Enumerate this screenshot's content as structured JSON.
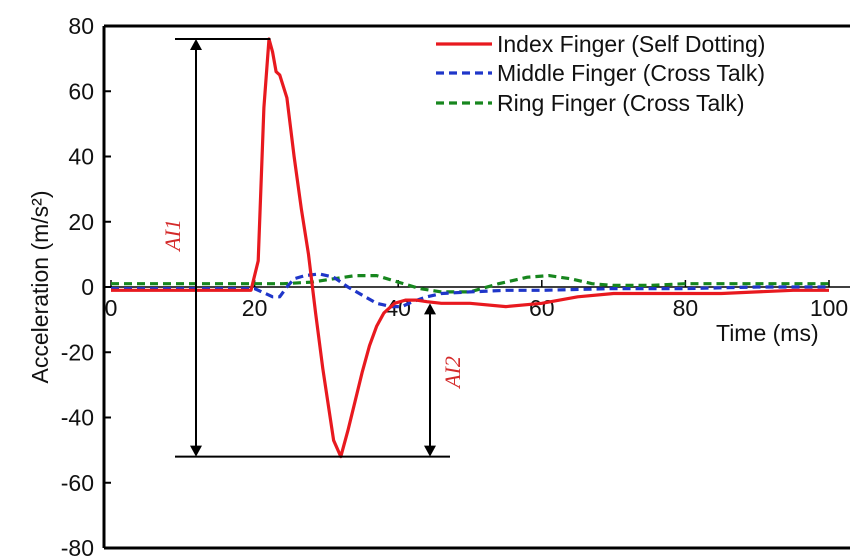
{
  "chart_data": {
    "type": "line",
    "xlabel": "Time (ms)",
    "ylabel": "Acceleration (m/s²)",
    "xlim": [
      0,
      100
    ],
    "ylim": [
      -80,
      80
    ],
    "xticks": [
      0,
      20,
      40,
      60,
      80,
      100
    ],
    "yticks": [
      -80,
      -60,
      -40,
      -20,
      0,
      20,
      40,
      60,
      80
    ],
    "grid": false,
    "legend_position": "top-right",
    "series": [
      {
        "name": "Index Finger (Self Dotting)",
        "color": "#e8191f",
        "dash": "solid",
        "x": [
          0,
          19.5,
          20.5,
          21.3,
          22.0,
          22.5,
          23.0,
          23.5,
          24.5,
          25.5,
          26.5,
          27.5,
          28.5,
          29.5,
          31.0,
          32.0,
          33.0,
          34.0,
          35.0,
          36.0,
          37.0,
          38.0,
          39.5,
          41.0,
          42.5,
          44.0,
          46.0,
          50.0,
          55.0,
          60.0,
          65.0,
          70.0,
          75.0,
          80.0,
          85.0,
          90.0,
          95.0,
          100.0
        ],
        "y": [
          -1,
          -1,
          8,
          55,
          76,
          72,
          66,
          65,
          58,
          40,
          24,
          10,
          -8,
          -25,
          -47,
          -52,
          -44,
          -35,
          -26,
          -18,
          -12,
          -8,
          -5,
          -4,
          -4,
          -4.5,
          -5,
          -5,
          -6,
          -5,
          -3,
          -2,
          -2,
          -2,
          -2,
          -1.5,
          -1,
          -1
        ]
      },
      {
        "name": "Middle Finger (Cross Talk)",
        "color": "#1f36c9",
        "dash": "dashed",
        "x": [
          0,
          20.0,
          21.5,
          22.5,
          23.5,
          24.5,
          25.5,
          27.0,
          29.0,
          31.0,
          33.0,
          35.0,
          37.0,
          39.0,
          40.5,
          42.0,
          44.0,
          46.0,
          50.0,
          55.0,
          60.0,
          70.0,
          80.0,
          90.0,
          100.0
        ],
        "y": [
          -0.5,
          -0.5,
          -2,
          -3,
          -3,
          0,
          2.5,
          3.5,
          4,
          3,
          0,
          -2.5,
          -5,
          -6,
          -6,
          -4.5,
          -3,
          -2,
          -1.5,
          -1,
          -1,
          -0.5,
          -0.5,
          0,
          0
        ]
      },
      {
        "name": "Ring Finger (Cross Talk)",
        "color": "#17861e",
        "dash": "dashed",
        "x": [
          0,
          10,
          20,
          24,
          28,
          31,
          34,
          37,
          40,
          43,
          46,
          50,
          54,
          58,
          61,
          64,
          67,
          70,
          75,
          80,
          90,
          100
        ],
        "y": [
          1,
          1,
          1,
          1,
          1.5,
          2.5,
          3.5,
          3.5,
          1.5,
          -0.5,
          -1.5,
          -1.5,
          1,
          3,
          3.5,
          2.5,
          1,
          0.5,
          0.5,
          1,
          1,
          1
        ]
      }
    ],
    "annotations": [
      {
        "label": "AI1",
        "color": "#d42a2a",
        "x": 22.2,
        "y_from": 76,
        "y_to": -52
      },
      {
        "label": "AI2",
        "color": "#d42a2a",
        "x": 41.6,
        "y_from": -5,
        "y_to": -52
      }
    ]
  }
}
